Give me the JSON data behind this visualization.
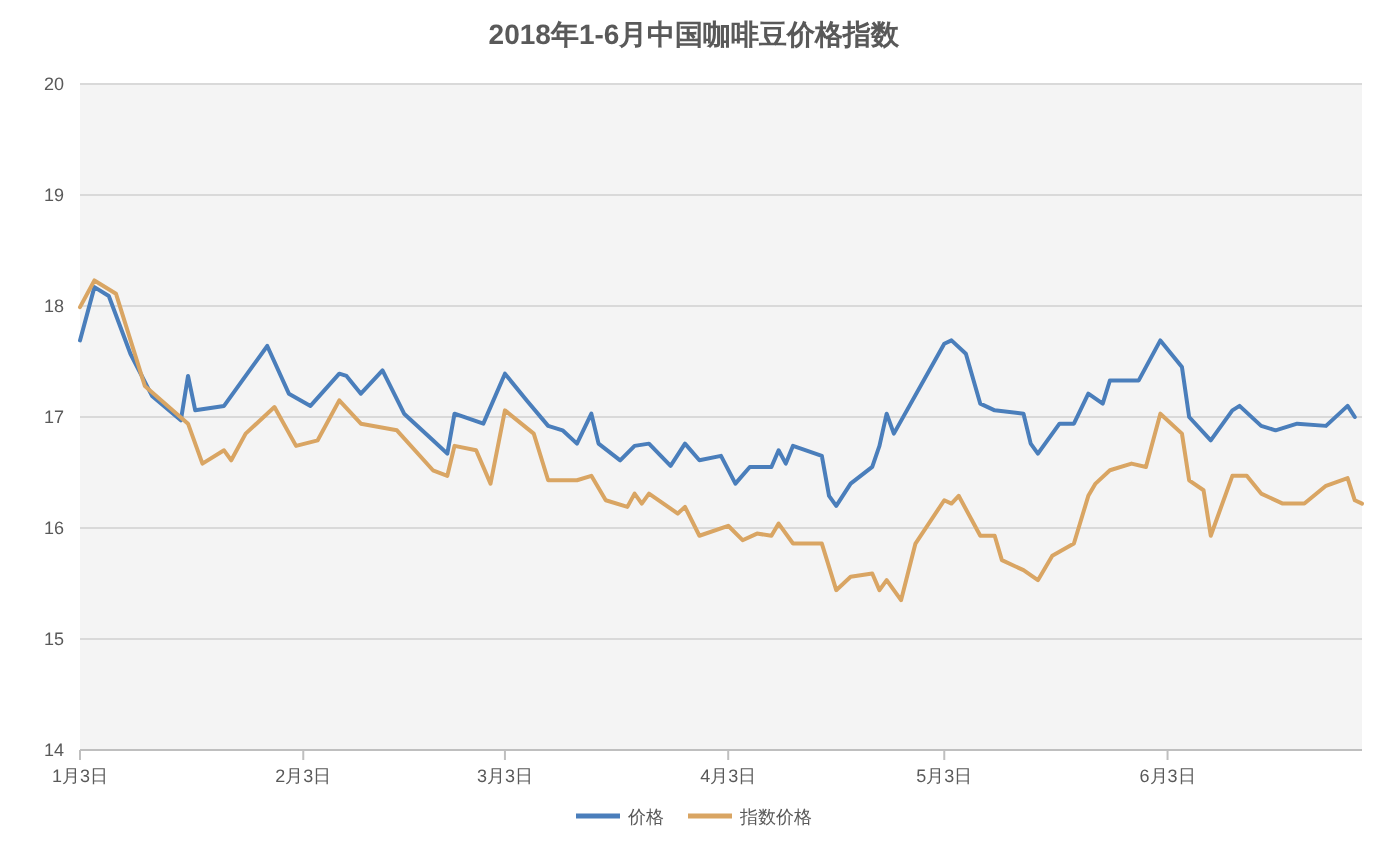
{
  "chart_data": {
    "type": "line",
    "title": "2018年1-6月中国咖啡豆价格指数",
    "xlim": [
      "2018-01-03",
      "2018-06-30"
    ],
    "xticks": [
      {
        "value": "2018-01-03",
        "label": "1月3日"
      },
      {
        "value": "2018-02-03",
        "label": "2月3日"
      },
      {
        "value": "2018-03-03",
        "label": "3月3日"
      },
      {
        "value": "2018-04-03",
        "label": "4月3日"
      },
      {
        "value": "2018-05-03",
        "label": "5月3日"
      },
      {
        "value": "2018-06-03",
        "label": "6月3日"
      }
    ],
    "ylim": [
      14,
      20
    ],
    "yticks": [
      14,
      15,
      16,
      17,
      18,
      19,
      20
    ],
    "grid": "y",
    "legend": "bottom",
    "series": [
      {
        "name": "价格",
        "color": "#4a7ebb",
        "x": [
          "2018-01-03",
          "2018-01-05",
          "2018-01-07",
          "2018-01-10",
          "2018-01-13",
          "2018-01-17",
          "2018-01-18",
          "2018-01-19",
          "2018-01-23",
          "2018-01-27",
          "2018-01-29",
          "2018-02-01",
          "2018-02-04",
          "2018-02-08",
          "2018-02-09",
          "2018-02-11",
          "2018-02-14",
          "2018-02-17",
          "2018-02-21",
          "2018-02-23",
          "2018-02-24",
          "2018-02-28",
          "2018-03-03",
          "2018-03-06",
          "2018-03-09",
          "2018-03-11",
          "2018-03-13",
          "2018-03-15",
          "2018-03-16",
          "2018-03-19",
          "2018-03-21",
          "2018-03-23",
          "2018-03-26",
          "2018-03-28",
          "2018-03-30",
          "2018-04-02",
          "2018-04-04",
          "2018-04-06",
          "2018-04-09",
          "2018-04-10",
          "2018-04-11",
          "2018-04-12",
          "2018-04-16",
          "2018-04-17",
          "2018-04-18",
          "2018-04-20",
          "2018-04-23",
          "2018-04-24",
          "2018-04-25",
          "2018-04-26",
          "2018-05-03",
          "2018-05-04",
          "2018-05-06",
          "2018-05-08",
          "2018-05-10",
          "2018-05-14",
          "2018-05-15",
          "2018-05-16",
          "2018-05-19",
          "2018-05-21",
          "2018-05-23",
          "2018-05-25",
          "2018-05-26",
          "2018-05-30",
          "2018-06-02",
          "2018-06-05",
          "2018-06-06",
          "2018-06-09",
          "2018-06-12",
          "2018-06-13",
          "2018-06-16",
          "2018-06-18",
          "2018-06-21",
          "2018-06-25",
          "2018-06-28",
          "2018-06-29"
        ],
        "values": [
          17.69,
          18.17,
          18.09,
          17.57,
          17.19,
          16.97,
          17.37,
          17.06,
          17.1,
          17.46,
          17.64,
          17.21,
          17.1,
          17.39,
          17.37,
          17.21,
          17.42,
          17.03,
          16.79,
          16.67,
          17.03,
          16.94,
          17.39,
          17.15,
          16.92,
          16.88,
          16.76,
          17.03,
          16.76,
          16.61,
          16.74,
          16.76,
          16.56,
          16.76,
          16.61,
          16.65,
          16.4,
          16.55,
          16.55,
          16.7,
          16.58,
          16.74,
          16.65,
          16.29,
          16.2,
          16.4,
          16.55,
          16.74,
          17.03,
          16.85,
          17.66,
          17.69,
          17.57,
          17.12,
          17.06,
          17.03,
          16.76,
          16.67,
          16.94,
          16.94,
          17.21,
          17.12,
          17.33,
          17.33,
          17.69,
          17.45,
          17.0,
          16.79,
          17.06,
          17.1,
          16.92,
          16.88,
          16.94,
          16.92,
          17.1,
          17.0
        ]
      },
      {
        "name": "指数价格",
        "color": "#d9a563",
        "x": [
          "2018-01-03",
          "2018-01-05",
          "2018-01-08",
          "2018-01-12",
          "2018-01-18",
          "2018-01-20",
          "2018-01-23",
          "2018-01-24",
          "2018-01-26",
          "2018-01-30",
          "2018-02-02",
          "2018-02-05",
          "2018-02-08",
          "2018-02-11",
          "2018-02-16",
          "2018-02-21",
          "2018-02-23",
          "2018-02-24",
          "2018-02-27",
          "2018-03-01",
          "2018-03-03",
          "2018-03-07",
          "2018-03-09",
          "2018-03-13",
          "2018-03-15",
          "2018-03-17",
          "2018-03-20",
          "2018-03-21",
          "2018-03-22",
          "2018-03-23",
          "2018-03-27",
          "2018-03-28",
          "2018-03-30",
          "2018-04-03",
          "2018-04-05",
          "2018-04-07",
          "2018-04-09",
          "2018-04-10",
          "2018-04-12",
          "2018-04-14",
          "2018-04-16",
          "2018-04-18",
          "2018-04-20",
          "2018-04-23",
          "2018-04-24",
          "2018-04-25",
          "2018-04-27",
          "2018-04-29",
          "2018-05-03",
          "2018-05-04",
          "2018-05-05",
          "2018-05-08",
          "2018-05-10",
          "2018-05-11",
          "2018-05-14",
          "2018-05-16",
          "2018-05-18",
          "2018-05-21",
          "2018-05-23",
          "2018-05-24",
          "2018-05-26",
          "2018-05-29",
          "2018-05-31",
          "2018-06-02",
          "2018-06-05",
          "2018-06-06",
          "2018-06-08",
          "2018-06-09",
          "2018-06-12",
          "2018-06-14",
          "2018-06-16",
          "2018-06-19",
          "2018-06-22",
          "2018-06-25",
          "2018-06-28",
          "2018-06-29",
          "2018-06-30"
        ],
        "values": [
          17.99,
          18.23,
          18.11,
          17.28,
          16.94,
          16.58,
          16.7,
          16.61,
          16.85,
          17.09,
          16.74,
          16.79,
          17.15,
          16.94,
          16.88,
          16.52,
          16.47,
          16.74,
          16.7,
          16.4,
          17.06,
          16.85,
          16.43,
          16.43,
          16.47,
          16.25,
          16.19,
          16.31,
          16.22,
          16.31,
          16.13,
          16.19,
          15.93,
          16.02,
          15.89,
          15.95,
          15.93,
          16.04,
          15.86,
          15.86,
          15.86,
          15.44,
          15.56,
          15.59,
          15.44,
          15.53,
          15.35,
          15.86,
          16.25,
          16.22,
          16.29,
          15.93,
          15.93,
          15.71,
          15.62,
          15.53,
          15.75,
          15.86,
          16.29,
          16.4,
          16.52,
          16.58,
          16.55,
          17.03,
          16.85,
          16.43,
          16.34,
          15.93,
          16.47,
          16.47,
          16.31,
          16.22,
          16.22,
          16.38,
          16.45,
          16.25,
          16.22
        ]
      }
    ]
  }
}
